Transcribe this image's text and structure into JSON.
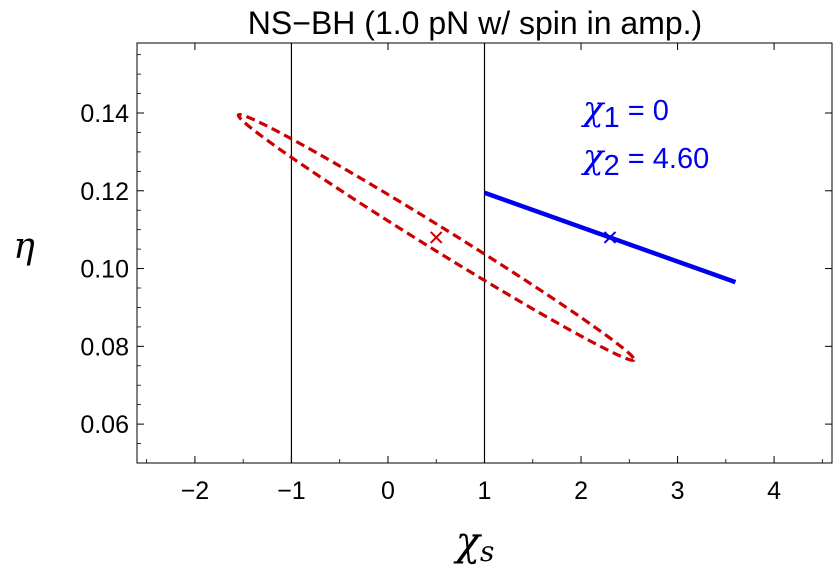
{
  "chart_data": {
    "type": "scatter",
    "title": "NS−BH (1.0 pN w/ spin in amp.)",
    "xlabel": "χ",
    "xlabel_sub": "s",
    "ylabel": "η",
    "xlim": [
      -2.6,
      4.6
    ],
    "ylim": [
      0.05,
      0.158
    ],
    "xticks": [
      -2,
      -1,
      0,
      1,
      2,
      3,
      4
    ],
    "xtick_labels": [
      "−2",
      "−1",
      "0",
      "1",
      "2",
      "3",
      "4"
    ],
    "yticks": [
      0.06,
      0.08,
      0.1,
      0.12,
      0.14
    ],
    "ytick_labels": [
      "0.06",
      "0.08",
      "0.10",
      "0.12",
      "0.14"
    ],
    "grid": false,
    "vertical_lines": [
      -1,
      1
    ],
    "series": [
      {
        "kind": "ellipse",
        "color": "#cc0000",
        "dashed": true,
        "center": [
          0.5,
          0.108
        ],
        "endpoints": [
          [
            -1.55,
            0.1395
          ],
          [
            2.55,
            0.0765
          ]
        ],
        "minor_half_width_eta": 0.0035
      },
      {
        "kind": "line",
        "color": "#0000ee",
        "points": [
          [
            1.0,
            0.1195
          ],
          [
            3.6,
            0.0965
          ]
        ]
      },
      {
        "kind": "marker",
        "marker": "x",
        "color": "#cc0000",
        "points": [
          [
            0.5,
            0.108
          ]
        ]
      },
      {
        "kind": "marker",
        "marker": "x",
        "color": "#0000ee",
        "points": [
          [
            2.3,
            0.108
          ]
        ]
      }
    ],
    "annotations": [
      {
        "symbol": "χ",
        "sub": "1",
        "text": " = 0"
      },
      {
        "symbol": "χ",
        "sub": "2",
        "text": " = 4.60"
      }
    ]
  }
}
